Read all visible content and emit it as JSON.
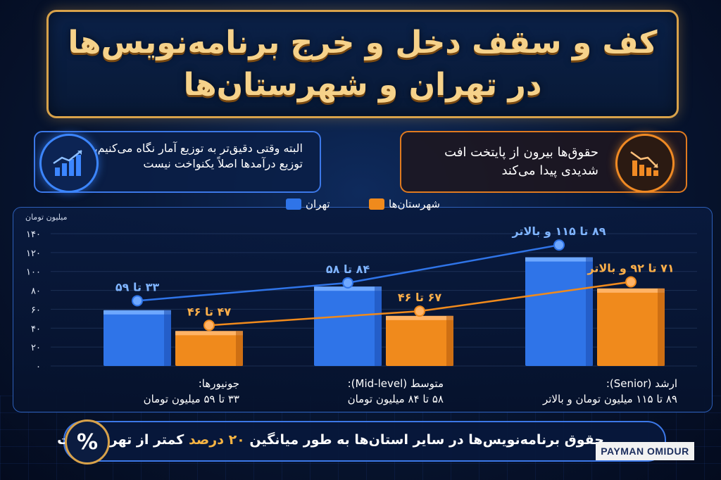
{
  "title": {
    "line1": "کف و سقف دخل و خرج برنامه‌نویس‌ها",
    "line2": "در تهران و شهرستان‌ها"
  },
  "info_left": {
    "text": "البته وقتی دقیق‌تر به توزیع آمار نگاه می‌کنیم، توزیع درآمدها اصلاً یکنواخت نیست",
    "icon": "chart-growth-icon"
  },
  "info_right": {
    "text": "حقوق‌ها بیرون از پایتخت افت شدیدی پیدا می‌کند",
    "icon": "chart-decline-icon"
  },
  "footer": {
    "text_before": "حقوق برنامه‌نویس‌ها در سایر استان‌ها به طور میانگین",
    "highlight": "۲۰ درصد",
    "text_after": "کمتر از تهران است",
    "badge": "%"
  },
  "logo": "PAYMAN OMIDUR",
  "colors": {
    "tehran": "#2f74e8",
    "provinces": "#f08a1c",
    "accent": "#d8a24a",
    "background": "#071531"
  },
  "categories_labels": [
    {
      "line1": "جونیورها:",
      "line2": "۳۳ تا ۵۹ میلیون تومان"
    },
    {
      "line1": "متوسط (Mid-level):",
      "line2": "۵۸ تا ۸۴ میلیون تومان"
    },
    {
      "line1": "ارشد (Senior):",
      "line2": "۸۹ تا ۱۱۵ میلیون تومان و بالاتر"
    }
  ],
  "chart_data": {
    "type": "bar",
    "unit_label": "میلیون تومان",
    "categories": [
      "جونیورها",
      "متوسط (Mid-level)",
      "ارشد (Senior)"
    ],
    "ylim": [
      0,
      140
    ],
    "yticks": [
      0,
      20,
      40,
      60,
      80,
      100,
      120,
      140
    ],
    "ytick_labels": [
      "۰",
      "۲۰",
      "۴۰",
      "۶۰",
      "۸۰",
      "۱۰۰",
      "۱۲۰",
      "۱۴۰"
    ],
    "legend_position": "top-center",
    "grid": true,
    "series": [
      {
        "name": "تهران",
        "values": [
          59,
          84,
          115
        ],
        "line_values": [
          69,
          88,
          128
        ],
        "labels": [
          "۳۳ تا ۵۹",
          "۸۴ تا ۵۸",
          "۸۹ تا ۱۱۵ و بالاتر"
        ]
      },
      {
        "name": "شهرستان‌ها",
        "values": [
          37,
          53,
          82
        ],
        "line_values": [
          43,
          58,
          89
        ],
        "labels": [
          "۴۷ تا ۴۶",
          "۶۷ تا ۴۶",
          "۷۱ تا ۹۲ و بالاتر"
        ]
      }
    ]
  }
}
